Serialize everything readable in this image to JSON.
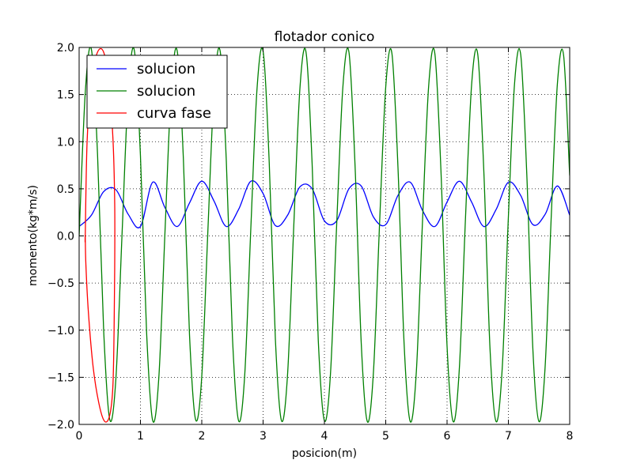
{
  "chart_data": {
    "type": "line",
    "title": "flotador conico",
    "xlabel": "posicion(m)",
    "ylabel": "momento(kg*m/s)",
    "xlim": [
      0,
      8
    ],
    "ylim": [
      -2.0,
      2.0
    ],
    "xticks": [
      "0",
      "1",
      "2",
      "3",
      "4",
      "5",
      "6",
      "7",
      "8"
    ],
    "yticks": [
      "2.0",
      "1.5",
      "1.0",
      "0.5",
      "0.0",
      "−0.5",
      "−1.0",
      "−1.5",
      "−2.0"
    ],
    "grid": true,
    "legend_position": "top-left",
    "series": [
      {
        "name": "solucion",
        "color": "#0000ff",
        "x": [
          0.0,
          0.2,
          0.4,
          0.6,
          0.8,
          1.0,
          1.2,
          1.4,
          1.6,
          1.8,
          2.0,
          2.2,
          2.4,
          2.6,
          2.8,
          3.0,
          3.2,
          3.4,
          3.6,
          3.8,
          4.0,
          4.2,
          4.4,
          4.6,
          4.8,
          5.0,
          5.2,
          5.4,
          5.6,
          5.8,
          6.0,
          6.2,
          6.4,
          6.6,
          6.8,
          7.0,
          7.2,
          7.4,
          7.6,
          7.8,
          8.0
        ],
        "y": [
          0.1,
          0.22,
          0.47,
          0.49,
          0.23,
          0.1,
          0.57,
          0.3,
          0.1,
          0.35,
          0.58,
          0.37,
          0.1,
          0.28,
          0.58,
          0.45,
          0.11,
          0.22,
          0.52,
          0.5,
          0.16,
          0.16,
          0.5,
          0.53,
          0.2,
          0.12,
          0.43,
          0.57,
          0.27,
          0.1,
          0.36,
          0.58,
          0.36,
          0.1,
          0.28,
          0.57,
          0.43,
          0.12,
          0.23,
          0.53,
          0.22
        ]
      },
      {
        "name": "solucion",
        "color": "#008000",
        "x": [
          0.0,
          0.1,
          0.2,
          0.3,
          0.4,
          0.5,
          0.6,
          0.7,
          0.8,
          0.9,
          1.0,
          1.1,
          1.2,
          1.3,
          1.4,
          1.5,
          1.6,
          1.7,
          1.8,
          1.9,
          2.0,
          2.1,
          2.2,
          2.3,
          2.4,
          2.5,
          2.6,
          2.7,
          2.8,
          2.9,
          3.0,
          3.1,
          3.2,
          3.3,
          3.4,
          3.5,
          3.6,
          3.7,
          3.8,
          3.9,
          4.0,
          4.1,
          4.2,
          4.3,
          4.4,
          4.5,
          4.6,
          4.7,
          4.8,
          4.9,
          5.0,
          5.1,
          5.2,
          5.3,
          5.4,
          5.5,
          5.6,
          5.7,
          5.8,
          5.9,
          6.0,
          6.1,
          6.2,
          6.3,
          6.4,
          6.5,
          6.6,
          6.7,
          6.8,
          6.9,
          7.0,
          7.1,
          7.2,
          7.3,
          7.4,
          7.5,
          7.6,
          7.7,
          7.8,
          7.9,
          8.0
        ],
        "y": [
          0.0,
          1.52,
          1.98,
          0.87,
          -1.0,
          -1.95,
          -1.51,
          0.02,
          1.52,
          1.97,
          0.85,
          -1.02,
          -1.96,
          -1.5,
          0.04,
          1.53,
          1.96,
          0.82,
          -1.05,
          -1.95,
          -1.49,
          0.06,
          1.54,
          1.96,
          0.8,
          -1.07,
          -1.96,
          -1.48,
          0.08,
          1.55,
          1.96,
          0.78,
          -1.09,
          -1.96,
          -1.46,
          0.1,
          1.56,
          1.95,
          0.76,
          -1.11,
          -1.96,
          -1.45,
          0.12,
          1.57,
          1.95,
          0.74,
          -1.13,
          -1.97,
          -1.44,
          0.14,
          1.58,
          1.94,
          0.72,
          -1.15,
          -1.97,
          -1.43,
          0.16,
          1.59,
          1.94,
          0.7,
          -1.17,
          -1.97,
          -1.41,
          0.18,
          1.6,
          1.93,
          0.68,
          -1.19,
          -1.97,
          -1.4,
          0.2,
          1.61,
          1.93,
          0.66,
          -1.21,
          -1.97,
          -1.38,
          0.22,
          1.62,
          1.92,
          0.64
        ]
      },
      {
        "name": "curva fase",
        "color": "#ff0000",
        "x": [
          0.1,
          0.13,
          0.2,
          0.3,
          0.4,
          0.48,
          0.55,
          0.58,
          0.58,
          0.57,
          0.55,
          0.5,
          0.42,
          0.33,
          0.23,
          0.15,
          0.11,
          0.1
        ],
        "y": [
          0.0,
          1.0,
          1.65,
          1.95,
          1.95,
          1.65,
          1.05,
          0.35,
          -0.35,
          -1.0,
          -1.6,
          -1.9,
          -1.97,
          -1.8,
          -1.4,
          -0.8,
          -0.3,
          0.0
        ]
      }
    ]
  }
}
